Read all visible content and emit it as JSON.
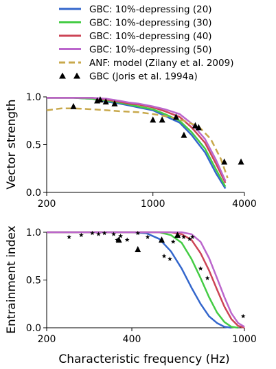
{
  "colors": {
    "gbc20": "#3366cc",
    "gbc30": "#44cc44",
    "gbc40": "#cc4455",
    "gbc50": "#bb66cc",
    "anf": "#c8a84b",
    "joris": "#000000"
  },
  "legend": [
    {
      "key": "gbc20",
      "label": "GBC: 10%-depressing (20)",
      "style": "line"
    },
    {
      "key": "gbc30",
      "label": "GBC: 10%-depressing (30)",
      "style": "line"
    },
    {
      "key": "gbc40",
      "label": "GBC: 10%-depressing (40)",
      "style": "line"
    },
    {
      "key": "gbc50",
      "label": "GBC: 10%-depressing (50)",
      "style": "line"
    },
    {
      "key": "anf",
      "label": "ANF: model (Zilany et al. 2009)",
      "style": "dash"
    },
    {
      "key": "joris",
      "label": "GBC (Joris et al. 1994a)",
      "style": "triangle"
    }
  ],
  "chart_data": [
    {
      "type": "line",
      "ylabel": "Vector strength",
      "xscale": "log",
      "xlim": [
        200,
        4000
      ],
      "ylim": [
        0.0,
        1.0
      ],
      "xticks": [
        200,
        1000,
        4000
      ],
      "xticklabels": [
        "200",
        "1000",
        "4000"
      ],
      "yticks": [
        0.0,
        0.5,
        1.0
      ],
      "yticklabels": [
        "0.0",
        "0.5",
        "1.0"
      ],
      "series": [
        {
          "key": "gbc20",
          "name": "GBC: 10%-depressing (20)",
          "x": [
            200,
            300,
            400,
            500,
            600,
            700,
            800,
            1000,
            1200,
            1500,
            1800,
            2200,
            2600,
            3000
          ],
          "y": [
            0.99,
            0.99,
            0.98,
            0.95,
            0.93,
            0.91,
            0.89,
            0.86,
            0.8,
            0.73,
            0.6,
            0.42,
            0.2,
            0.04
          ]
        },
        {
          "key": "gbc30",
          "name": "GBC: 10%-depressing (30)",
          "x": [
            200,
            300,
            400,
            500,
            600,
            700,
            800,
            1000,
            1200,
            1500,
            1800,
            2200,
            2600,
            3000
          ],
          "y": [
            0.99,
            0.99,
            0.98,
            0.96,
            0.94,
            0.92,
            0.9,
            0.87,
            0.82,
            0.75,
            0.63,
            0.46,
            0.24,
            0.06
          ]
        },
        {
          "key": "gbc40",
          "name": "GBC: 10%-depressing (40)",
          "x": [
            200,
            300,
            400,
            500,
            600,
            700,
            800,
            1000,
            1200,
            1500,
            1800,
            2200,
            2600,
            3000
          ],
          "y": [
            0.99,
            0.99,
            0.99,
            0.97,
            0.95,
            0.93,
            0.92,
            0.89,
            0.85,
            0.79,
            0.68,
            0.52,
            0.3,
            0.1
          ]
        },
        {
          "key": "gbc50",
          "name": "GBC: 10%-depressing (50)",
          "x": [
            200,
            300,
            400,
            500,
            600,
            700,
            800,
            1000,
            1200,
            1500,
            1800,
            2200,
            2600,
            3000
          ],
          "y": [
            0.99,
            0.99,
            0.99,
            0.98,
            0.96,
            0.94,
            0.93,
            0.9,
            0.87,
            0.82,
            0.72,
            0.56,
            0.34,
            0.12
          ]
        },
        {
          "key": "anf",
          "name": "ANF: model (Zilany et al. 2009)",
          "style": "dash",
          "x": [
            200,
            250,
            300,
            400,
            500,
            600,
            800,
            1000,
            1300,
            1600,
            2000,
            2400,
            2800,
            3100
          ],
          "y": [
            0.86,
            0.88,
            0.88,
            0.87,
            0.86,
            0.85,
            0.84,
            0.82,
            0.79,
            0.75,
            0.69,
            0.56,
            0.35,
            0.15
          ]
        }
      ],
      "scatter": {
        "key": "joris",
        "marker": "triangle",
        "x": [
          300,
          430,
          450,
          490,
          560,
          1000,
          1150,
          1420,
          1600,
          1900,
          2000,
          2950,
          3800
        ],
        "y": [
          0.9,
          0.96,
          0.97,
          0.95,
          0.93,
          0.76,
          0.76,
          0.79,
          0.6,
          0.7,
          0.68,
          0.32,
          0.32
        ]
      }
    },
    {
      "type": "line",
      "ylabel": "Entrainment index",
      "xlabel": "Characteristic frequency (Hz)",
      "xscale": "log",
      "xlim": [
        200,
        1000
      ],
      "ylim": [
        0.0,
        1.0
      ],
      "xticks": [
        200,
        400,
        1000
      ],
      "xticklabels": [
        "200",
        "400",
        "1000"
      ],
      "yticks": [
        0.0,
        0.5,
        1.0
      ],
      "yticklabels": [
        "0.0",
        "0.5",
        "1.0"
      ],
      "series": [
        {
          "key": "gbc20",
          "name": "GBC: 10%-depressing (20)",
          "x": [
            200,
            300,
            400,
            450,
            500,
            550,
            600,
            650,
            700,
            750,
            800,
            850,
            900
          ],
          "y": [
            1.0,
            1.0,
            1.0,
            0.99,
            0.93,
            0.8,
            0.62,
            0.42,
            0.25,
            0.12,
            0.05,
            0.01,
            0.0
          ]
        },
        {
          "key": "gbc30",
          "name": "GBC: 10%-depressing (30)",
          "x": [
            200,
            300,
            400,
            500,
            550,
            600,
            650,
            700,
            750,
            800,
            850,
            900,
            950
          ],
          "y": [
            1.0,
            1.0,
            1.0,
            1.0,
            0.97,
            0.89,
            0.72,
            0.52,
            0.32,
            0.16,
            0.06,
            0.01,
            0.0
          ]
        },
        {
          "key": "gbc40",
          "name": "GBC: 10%-depressing (40)",
          "x": [
            200,
            300,
            400,
            500,
            550,
            600,
            650,
            700,
            750,
            800,
            850,
            900,
            950,
            1000
          ],
          "y": [
            1.0,
            1.0,
            1.0,
            1.0,
            1.0,
            0.98,
            0.92,
            0.78,
            0.6,
            0.4,
            0.22,
            0.09,
            0.02,
            0.0
          ]
        },
        {
          "key": "gbc50",
          "name": "GBC: 10%-depressing (50)",
          "x": [
            200,
            300,
            400,
            500,
            550,
            600,
            650,
            700,
            750,
            800,
            850,
            900,
            950,
            1000
          ],
          "y": [
            1.0,
            1.0,
            1.0,
            1.0,
            1.0,
            1.0,
            0.98,
            0.9,
            0.73,
            0.52,
            0.32,
            0.15,
            0.05,
            0.01
          ]
        }
      ],
      "scatter_stars": {
        "key": "joris",
        "marker": "star",
        "x": [
          240,
          265,
          290,
          305,
          320,
          345,
          355,
          365,
          385,
          420,
          455,
          520,
          545,
          560,
          585,
          610,
          640,
          655,
          700,
          740,
          990
        ],
        "y": [
          0.95,
          0.97,
          0.99,
          0.98,
          0.99,
          0.98,
          0.92,
          0.96,
          0.92,
          0.99,
          0.95,
          0.75,
          0.72,
          0.9,
          0.96,
          0.95,
          0.93,
          0.95,
          0.62,
          0.52,
          0.12
        ]
      },
      "scatter": {
        "key": "joris",
        "marker": "triangle",
        "x": [
          360,
          420,
          510,
          580
        ],
        "y": [
          0.92,
          0.82,
          0.92,
          0.97
        ]
      }
    }
  ]
}
